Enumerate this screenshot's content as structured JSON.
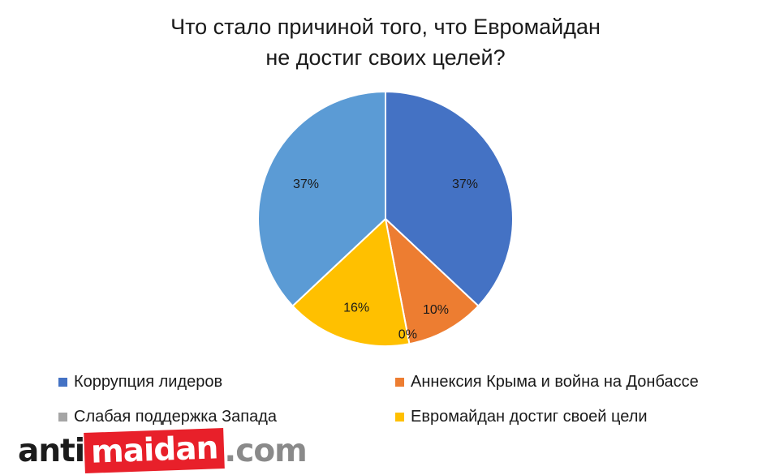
{
  "chart_data": {
    "type": "pie",
    "title_lines": [
      "Что стало причиной того, что Евромайдан",
      "не достиг своих целей?"
    ],
    "slices": [
      {
        "name": "Коррупция лидеров",
        "value": 37,
        "label": "37%",
        "color": "#4472c4"
      },
      {
        "name": "Аннексия Крыма и война на Донбассе",
        "value": 10,
        "label": "10%",
        "color": "#ed7d31"
      },
      {
        "name": "Слабая поддержка Запада",
        "value": 0,
        "label": "0%",
        "color": "#a5a5a5"
      },
      {
        "name": "Евромайдан достиг своей цели",
        "value": 16,
        "label": "16%",
        "color": "#ffc000"
      },
      {
        "name": "",
        "value": 37,
        "label": "37%",
        "color": "#5b9bd5"
      }
    ],
    "legend_position": "bottom"
  },
  "watermark": {
    "part1": "anti",
    "part2": "maidan",
    "part3": ".com"
  }
}
